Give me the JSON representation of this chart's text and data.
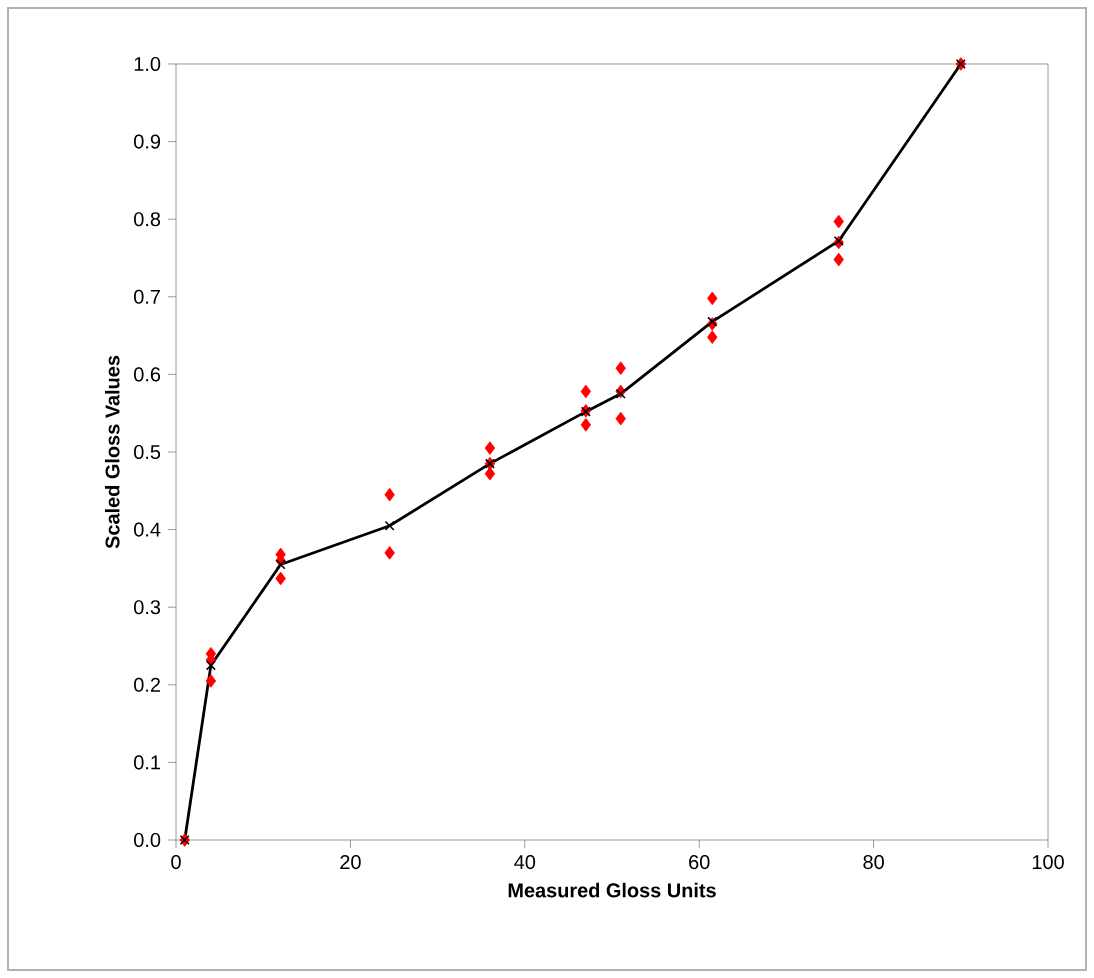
{
  "chart_data": {
    "type": "scatter",
    "xlabel": "Measured Gloss Units",
    "ylabel": "Scaled Gloss Values",
    "xlim": [
      0,
      100
    ],
    "ylim": [
      0,
      1
    ],
    "xticks": [
      0,
      20,
      40,
      60,
      80,
      100
    ],
    "yticks": [
      {
        "value": 0,
        "label": "0.0"
      },
      {
        "value": 0.1,
        "label": "0.1"
      },
      {
        "value": 0.2,
        "label": "0.2"
      },
      {
        "value": 0.3,
        "label": "0.3"
      },
      {
        "value": 0.4,
        "label": "0.4"
      },
      {
        "value": 0.5,
        "label": "0.5"
      },
      {
        "value": 0.6,
        "label": "0.6"
      },
      {
        "value": 0.7,
        "label": "0.7"
      },
      {
        "value": 0.8,
        "label": "0.8"
      },
      {
        "value": 0.9,
        "label": "0.9"
      },
      {
        "value": 1,
        "label": "1.0"
      }
    ],
    "series": [
      {
        "color": "#ff0000",
        "marker": "diamond",
        "x": [
          1,
          4,
          4,
          4,
          12,
          12,
          12,
          24.5,
          24.5,
          36,
          36,
          36,
          47,
          47,
          47,
          51,
          51,
          51,
          61.5,
          61.5,
          61.5,
          76,
          76,
          76,
          90
        ],
        "values": [
          0,
          0.24,
          0.232,
          0.205,
          0.368,
          0.36,
          0.337,
          0.445,
          0.37,
          0.505,
          0.485,
          0.472,
          0.578,
          0.553,
          0.535,
          0.608,
          0.578,
          0.543,
          0.698,
          0.665,
          0.648,
          0.797,
          0.77,
          0.748,
          1.0
        ]
      },
      {
        "type": "line",
        "color": "#000000",
        "marker": "cross",
        "line_style": "solid",
        "x": [
          1,
          4,
          12,
          24.5,
          36,
          47,
          51,
          61.5,
          76,
          90
        ],
        "values": [
          0,
          0.225,
          0.355,
          0.405,
          0.485,
          0.552,
          0.575,
          0.668,
          0.772,
          1.0
        ]
      }
    ]
  }
}
